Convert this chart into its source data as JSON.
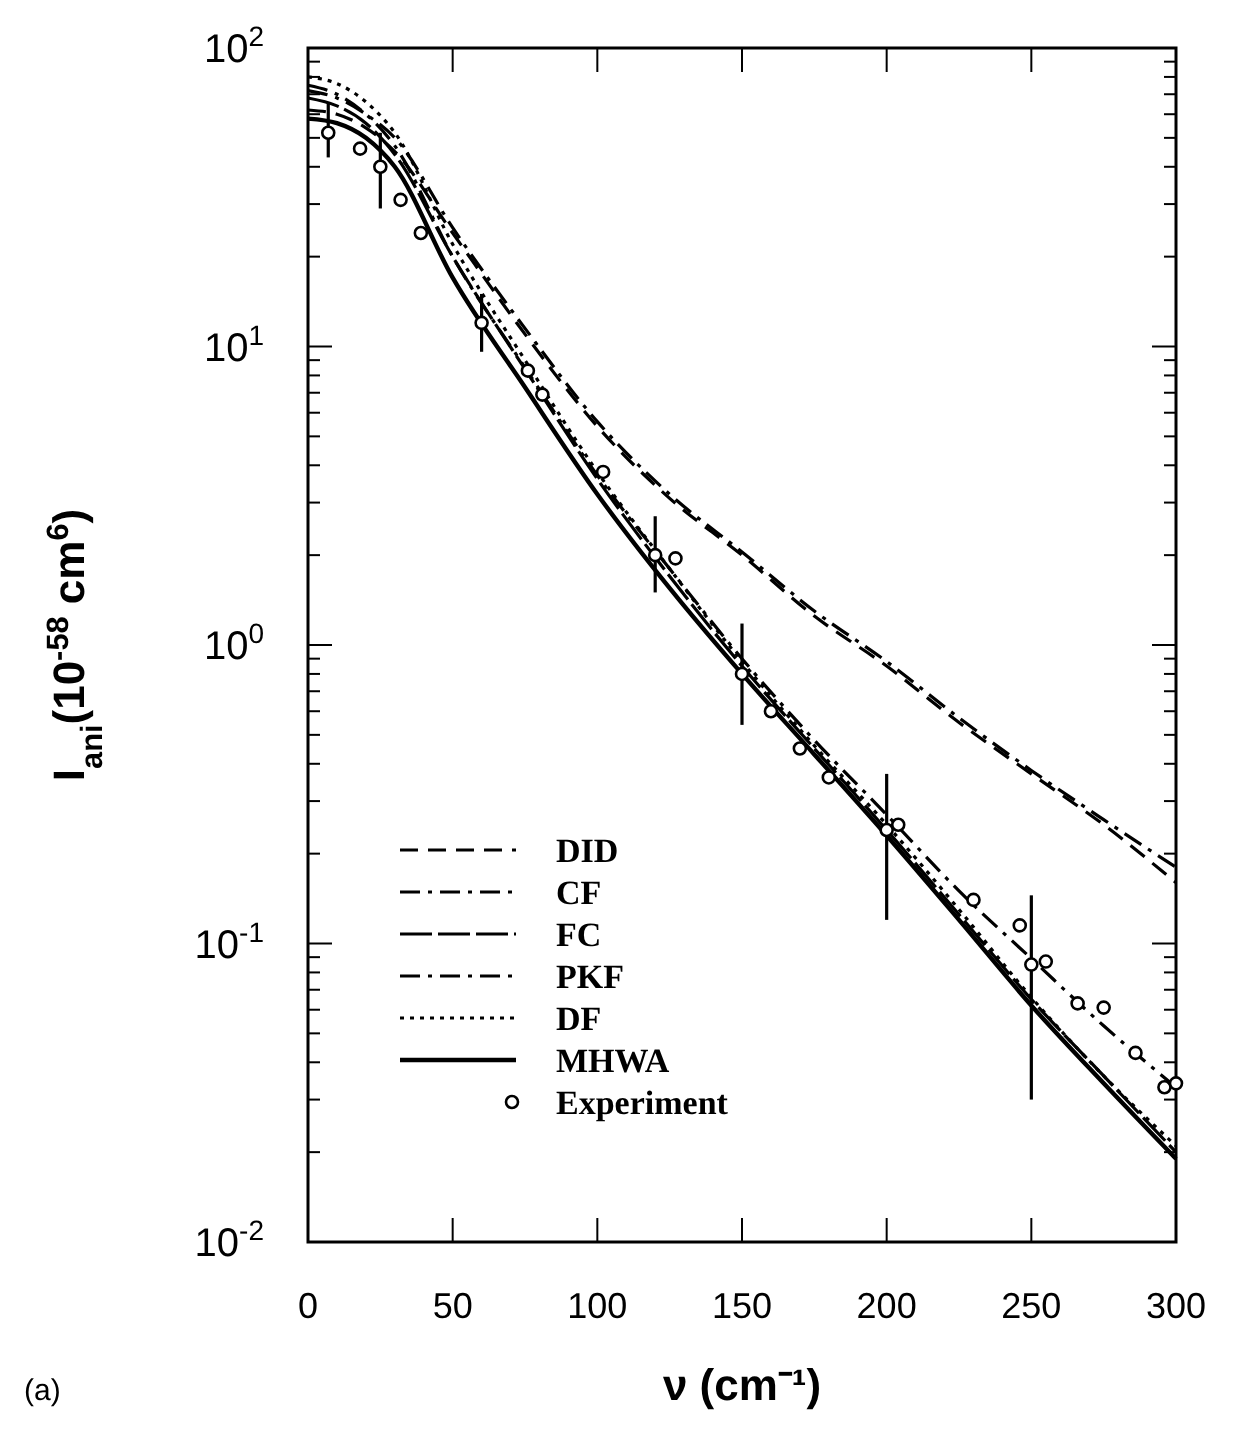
{
  "chart_data": {
    "type": "line",
    "xlabel": "ν (cm⁻¹)",
    "ylabel": "I$_{ani}$(10$^{-58}$ cm$^{6}$)",
    "annotations": [
      "(a)"
    ],
    "log": "y",
    "legend": "bottom left",
    "grid": false,
    "xlim": [
      0,
      300
    ],
    "xticks": [
      0,
      50,
      100,
      150,
      200,
      250,
      300
    ],
    "ylim": [
      0.01,
      100
    ],
    "yticks": [
      {
        "value": 0.01,
        "label": "10$^{-2}$"
      },
      {
        "value": 0.02,
        "label": null
      },
      {
        "value": 0.03,
        "label": null
      },
      {
        "value": 0.04,
        "label": null
      },
      {
        "value": 0.05,
        "label": null
      },
      {
        "value": 0.06,
        "label": null
      },
      {
        "value": 0.07,
        "label": null
      },
      {
        "value": 0.08,
        "label": null
      },
      {
        "value": 0.09,
        "label": null
      },
      {
        "value": 0.1,
        "label": "10$^{-1}$"
      },
      {
        "value": 0.2,
        "label": null
      },
      {
        "value": 0.3,
        "label": null
      },
      {
        "value": 0.4,
        "label": null
      },
      {
        "value": 0.5,
        "label": null
      },
      {
        "value": 0.6,
        "label": null
      },
      {
        "value": 0.7,
        "label": null
      },
      {
        "value": 0.8,
        "label": null
      },
      {
        "value": 0.9,
        "label": null
      },
      {
        "value": 1,
        "label": "10$^{0}$"
      },
      {
        "value": 2,
        "label": null
      },
      {
        "value": 3,
        "label": null
      },
      {
        "value": 4,
        "label": null
      },
      {
        "value": 5,
        "label": null
      },
      {
        "value": 6,
        "label": null
      },
      {
        "value": 7,
        "label": null
      },
      {
        "value": 8,
        "label": null
      },
      {
        "value": 9,
        "label": null
      },
      {
        "value": 10,
        "label": "10$^{1}$"
      },
      {
        "value": 20,
        "label": null
      },
      {
        "value": 30,
        "label": null
      },
      {
        "value": 40,
        "label": null
      },
      {
        "value": 50,
        "label": null
      },
      {
        "value": 60,
        "label": null
      },
      {
        "value": 70,
        "label": null
      },
      {
        "value": 80,
        "label": null
      },
      {
        "value": 90,
        "label": null
      },
      {
        "value": 100,
        "label": "10$^{2}$"
      }
    ],
    "x": [
      0,
      10,
      20,
      30,
      50,
      75,
      100,
      125,
      150,
      175,
      200,
      225,
      250,
      275,
      300
    ],
    "series": [
      {
        "name": "DID",
        "color": "#000000",
        "line_style": "dashed",
        "values": [
          62,
          60,
          54,
          45,
          24,
          11,
          5.4,
          3.1,
          2.0,
          1.25,
          0.85,
          0.55,
          0.37,
          0.25,
          0.16
        ]
      },
      {
        "name": "CF",
        "color": "#000000",
        "line_style": "dashdot",
        "values": [
          72,
          68,
          60,
          50,
          25,
          11.5,
          5.6,
          3.2,
          2.05,
          1.3,
          0.88,
          0.57,
          0.38,
          0.26,
          0.18
        ]
      },
      {
        "name": "FC",
        "color": "#000000",
        "line_style": "longdash",
        "values": [
          68,
          64,
          56,
          44,
          20,
          8.4,
          3.6,
          1.7,
          0.85,
          0.45,
          0.24,
          0.125,
          0.065,
          0.036,
          0.02
        ]
      },
      {
        "name": "PKF",
        "color": "#000000",
        "line_style": "dashdot",
        "values": [
          75,
          70,
          60,
          47,
          20,
          8.5,
          3.7,
          1.8,
          0.9,
          0.48,
          0.27,
          0.15,
          0.089,
          0.053,
          0.033
        ]
      },
      {
        "name": "DF",
        "color": "#000000",
        "line_style": "dotted",
        "values": [
          80,
          76,
          66,
          52,
          22,
          9.0,
          3.8,
          1.8,
          0.88,
          0.46,
          0.25,
          0.13,
          0.066,
          0.036,
          0.021
        ]
      },
      {
        "name": "MHWA",
        "color": "#000000",
        "line_style": "solid",
        "values": [
          58,
          56,
          50,
          40,
          17,
          7.3,
          3.2,
          1.55,
          0.8,
          0.43,
          0.23,
          0.12,
          0.062,
          0.034,
          0.019
        ]
      },
      {
        "name": "Experiment",
        "type": "scatter",
        "color": "#000000",
        "marker": "circle",
        "x": [
          7,
          18,
          25,
          32,
          39,
          60,
          76,
          81,
          102,
          120,
          127,
          150,
          160,
          170,
          180,
          200,
          204,
          230,
          246,
          250,
          255,
          266,
          275,
          286,
          296,
          300
        ],
        "values": [
          52,
          46,
          40,
          31,
          24,
          12,
          8.3,
          6.9,
          3.8,
          2.0,
          1.95,
          0.8,
          0.6,
          0.45,
          0.36,
          0.24,
          0.25,
          0.14,
          0.115,
          0.085,
          0.087,
          0.063,
          0.061,
          0.043,
          0.033,
          0.034
        ],
        "errors": [
          [
            43,
            65
          ],
          null,
          [
            29,
            52
          ],
          null,
          null,
          [
            9.6,
            15
          ],
          null,
          null,
          null,
          [
            1.5,
            2.7
          ],
          null,
          [
            0.54,
            1.18
          ],
          null,
          null,
          null,
          [
            0.12,
            0.37
          ],
          null,
          null,
          null,
          [
            0.03,
            0.145
          ],
          null,
          null,
          null,
          null,
          null,
          null
        ]
      }
    ]
  }
}
